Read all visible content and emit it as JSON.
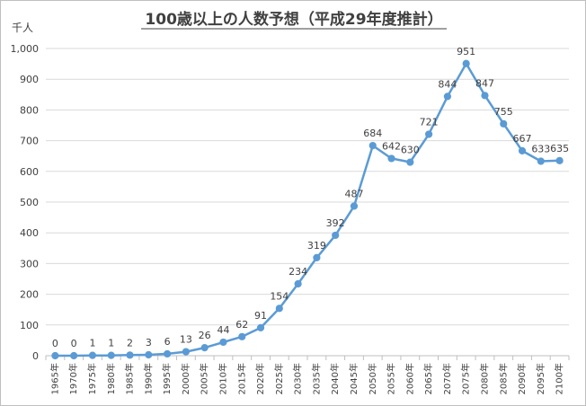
{
  "title": "100歳以上の人数予想（平成29年度推計）",
  "unit": "千人",
  "chart_data": {
    "type": "line",
    "title": "100歳以上の人数予想（平成29年度推計）",
    "ylabel": "千人",
    "xlabel": "",
    "ylim": [
      0,
      1000
    ],
    "ytick_step": 100,
    "ytick_labels": [
      "0",
      "100",
      "200",
      "300",
      "400",
      "500",
      "600",
      "700",
      "800",
      "900",
      "1,000"
    ],
    "grid": true,
    "legend": "none",
    "categories": [
      "1965年",
      "1970年",
      "1975年",
      "1980年",
      "1985年",
      "1990年",
      "1995年",
      "2000年",
      "2005年",
      "2010年",
      "2015年",
      "2020年",
      "2025年",
      "2030年",
      "2035年",
      "2040年",
      "2045年",
      "2050年",
      "2055年",
      "2060年",
      "2065年",
      "2070年",
      "2075年",
      "2080年",
      "2085年",
      "2090年",
      "2095年",
      "2100年"
    ],
    "series": [
      {
        "name": "100歳以上の人数",
        "color": "#5b9bd5",
        "values": [
          0,
          0,
          1,
          1,
          2,
          3,
          6,
          13,
          26,
          44,
          62,
          91,
          154,
          234,
          319,
          392,
          487,
          684,
          642,
          630,
          721,
          844,
          951,
          847,
          755,
          667,
          633,
          635
        ]
      }
    ]
  }
}
